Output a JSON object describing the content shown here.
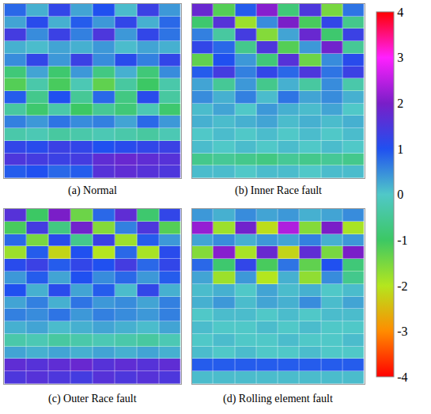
{
  "chart_data": {
    "type": "heatmap",
    "tick_labels": false,
    "colorbar": {
      "range": [
        -4,
        4
      ],
      "ticks": [
        -4,
        -3,
        -2,
        -1,
        0,
        1,
        2,
        3,
        4
      ]
    },
    "panels": [
      {
        "title": "(a) Normal",
        "z": [
          [
            0.8,
            0.2,
            1.2,
            0.3,
            1.0,
            0.1,
            1.3,
            0.4
          ],
          [
            0.3,
            1.1,
            0.2,
            0.9,
            0.4,
            1.2,
            0.2,
            0.8
          ],
          [
            1.4,
            0.5,
            1.3,
            0.6,
            1.5,
            0.4,
            1.2,
            0.7
          ],
          [
            0.2,
            0.1,
            0.3,
            0.2,
            0.4,
            0.1,
            0.3,
            0.2
          ],
          [
            0.5,
            1.2,
            0.4,
            1.3,
            0.5,
            1.1,
            0.6,
            1.2
          ],
          [
            -0.8,
            0.3,
            -0.9,
            0.4,
            -0.7,
            0.2,
            -0.8,
            0.5
          ],
          [
            -1.2,
            -0.3,
            -1.1,
            -0.2,
            -1.3,
            -0.4,
            -1.0,
            -0.3
          ],
          [
            0.9,
            -0.6,
            1.0,
            -0.5,
            0.8,
            -0.7,
            1.1,
            -0.4
          ],
          [
            -0.4,
            -0.9,
            -0.3,
            -1.0,
            -0.5,
            -0.8,
            -0.2,
            -0.9
          ],
          [
            0.6,
            0.4,
            0.7,
            0.5,
            0.6,
            0.3,
            0.8,
            0.4
          ],
          [
            -0.3,
            -0.2,
            -0.4,
            -0.3,
            -0.2,
            -0.3,
            -0.4,
            -0.2
          ],
          [
            1.2,
            1.1,
            1.3,
            1.2,
            1.0,
            1.1,
            1.2,
            1.3
          ],
          [
            1.5,
            1.4,
            1.3,
            1.4,
            1.7,
            1.8,
            1.7,
            1.6
          ],
          [
            0.9,
            1.0,
            0.8,
            0.9,
            1.6,
            1.7,
            1.6,
            1.5
          ]
        ]
      },
      {
        "title": "(b) Inner Race fault",
        "z": [
          [
            1.8,
            -1.2,
            0.9,
            2.1,
            -0.8,
            1.5,
            -1.5,
            0.7
          ],
          [
            -0.9,
            1.6,
            -1.8,
            0.5,
            2.0,
            -1.1,
            1.2,
            -0.6
          ],
          [
            0.6,
            -0.4,
            1.4,
            -1.6,
            0.3,
            1.8,
            -0.9,
            1.3
          ],
          [
            1.2,
            0.8,
            -0.6,
            1.5,
            -1.2,
            0.4,
            1.9,
            -0.5
          ],
          [
            -1.3,
            1.0,
            0.4,
            -0.8,
            1.6,
            -1.4,
            0.5,
            1.1
          ],
          [
            0.9,
            1.4,
            0.6,
            1.2,
            0.8,
            1.5,
            0.7,
            1.3
          ],
          [
            0.3,
            -0.5,
            0.4,
            -0.6,
            0.2,
            -0.4,
            0.5,
            -0.3
          ],
          [
            0.5,
            0.2,
            0.6,
            0.1,
            0.7,
            0.3,
            0.5,
            0.2
          ],
          [
            0.1,
            0.3,
            0.0,
            0.4,
            0.2,
            0.1,
            0.3,
            0.0
          ],
          [
            0.2,
            0.1,
            0.2,
            0.3,
            0.1,
            0.2,
            0.1,
            0.2
          ],
          [
            0.0,
            0.1,
            0.0,
            0.1,
            0.0,
            0.1,
            0.0,
            0.1
          ],
          [
            0.1,
            0.0,
            0.1,
            0.0,
            0.1,
            0.0,
            0.1,
            0.0
          ],
          [
            -0.6,
            -0.5,
            -0.6,
            -0.7,
            -0.5,
            -0.6,
            -0.5,
            -0.6
          ],
          [
            0.1,
            0.1,
            0.0,
            0.1,
            0.1,
            0.0,
            0.1,
            0.1
          ]
        ]
      },
      {
        "title": "(c) Outer Race fault",
        "z": [
          [
            1.6,
            -1.0,
            2.0,
            -1.4,
            0.8,
            1.7,
            -0.9,
            1.2
          ],
          [
            -1.1,
            1.4,
            -0.7,
            1.9,
            -1.6,
            0.6,
            1.5,
            -1.2
          ],
          [
            0.8,
            -1.5,
            1.1,
            -0.6,
            1.3,
            -1.8,
            0.9,
            0.4
          ],
          [
            -1.8,
            0.9,
            -2.2,
            1.0,
            -2.0,
            0.8,
            -1.9,
            1.1
          ],
          [
            1.1,
            1.3,
            0.9,
            1.2,
            1.0,
            1.4,
            0.8,
            1.2
          ],
          [
            0.4,
            0.9,
            0.3,
            1.0,
            0.5,
            0.8,
            0.4,
            0.9
          ],
          [
            1.0,
            0.2,
            1.1,
            0.3,
            0.9,
            0.1,
            1.2,
            0.2
          ],
          [
            0.3,
            0.6,
            0.2,
            0.7,
            0.4,
            0.5,
            0.3,
            0.6
          ],
          [
            0.6,
            0.5,
            0.7,
            0.4,
            0.6,
            0.5,
            0.4,
            0.6
          ],
          [
            0.2,
            0.3,
            0.1,
            0.2,
            0.3,
            0.2,
            0.1,
            0.3
          ],
          [
            -0.3,
            -0.2,
            -0.4,
            -0.3,
            -0.2,
            -0.3,
            -0.4,
            -0.2
          ],
          [
            0.3,
            0.2,
            0.3,
            0.2,
            0.3,
            0.2,
            0.3,
            0.2
          ],
          [
            1.7,
            1.6,
            1.7,
            1.8,
            1.6,
            1.7,
            1.6,
            1.7
          ],
          [
            1.5,
            1.6,
            1.5,
            1.4,
            1.6,
            1.5,
            1.6,
            1.5
          ]
        ]
      },
      {
        "title": "(d) Rolling element fault",
        "z": [
          [
            0.4,
            0.2,
            0.5,
            0.3,
            0.4,
            0.2,
            0.3,
            0.5
          ],
          [
            2.2,
            -1.8,
            1.9,
            -2.1,
            2.4,
            -1.6,
            2.0,
            -1.9
          ],
          [
            0.3,
            0.5,
            0.2,
            0.4,
            0.3,
            0.6,
            0.2,
            0.4
          ],
          [
            -1.6,
            2.1,
            -1.9,
            1.8,
            -2.2,
            1.7,
            -1.5,
            2.0
          ],
          [
            0.8,
            -0.9,
            1.2,
            -1.1,
            0.7,
            -1.3,
            1.0,
            -0.8
          ],
          [
            0.3,
            -1.8,
            0.4,
            -2.0,
            0.2,
            -1.7,
            0.5,
            -0.6
          ],
          [
            0.1,
            0.2,
            0.0,
            0.3,
            0.1,
            0.2,
            0.0,
            0.1
          ],
          [
            0.2,
            0.4,
            0.1,
            0.3,
            0.2,
            0.5,
            0.1,
            0.3
          ],
          [
            0.0,
            0.1,
            0.1,
            0.0,
            0.1,
            0.0,
            0.1,
            0.1
          ],
          [
            0.1,
            0.0,
            0.0,
            0.1,
            0.0,
            0.1,
            0.0,
            0.0
          ],
          [
            0.0,
            0.1,
            0.0,
            0.0,
            0.1,
            0.0,
            0.0,
            0.1
          ],
          [
            0.1,
            0.0,
            0.1,
            0.0,
            0.0,
            0.1,
            0.0,
            0.0
          ],
          [
            0.9,
            0.9,
            0.9,
            0.9,
            0.9,
            0.9,
            0.9,
            0.9
          ],
          [
            0.1,
            0.1,
            0.1,
            0.1,
            0.1,
            0.1,
            0.1,
            0.1
          ]
        ]
      }
    ]
  }
}
